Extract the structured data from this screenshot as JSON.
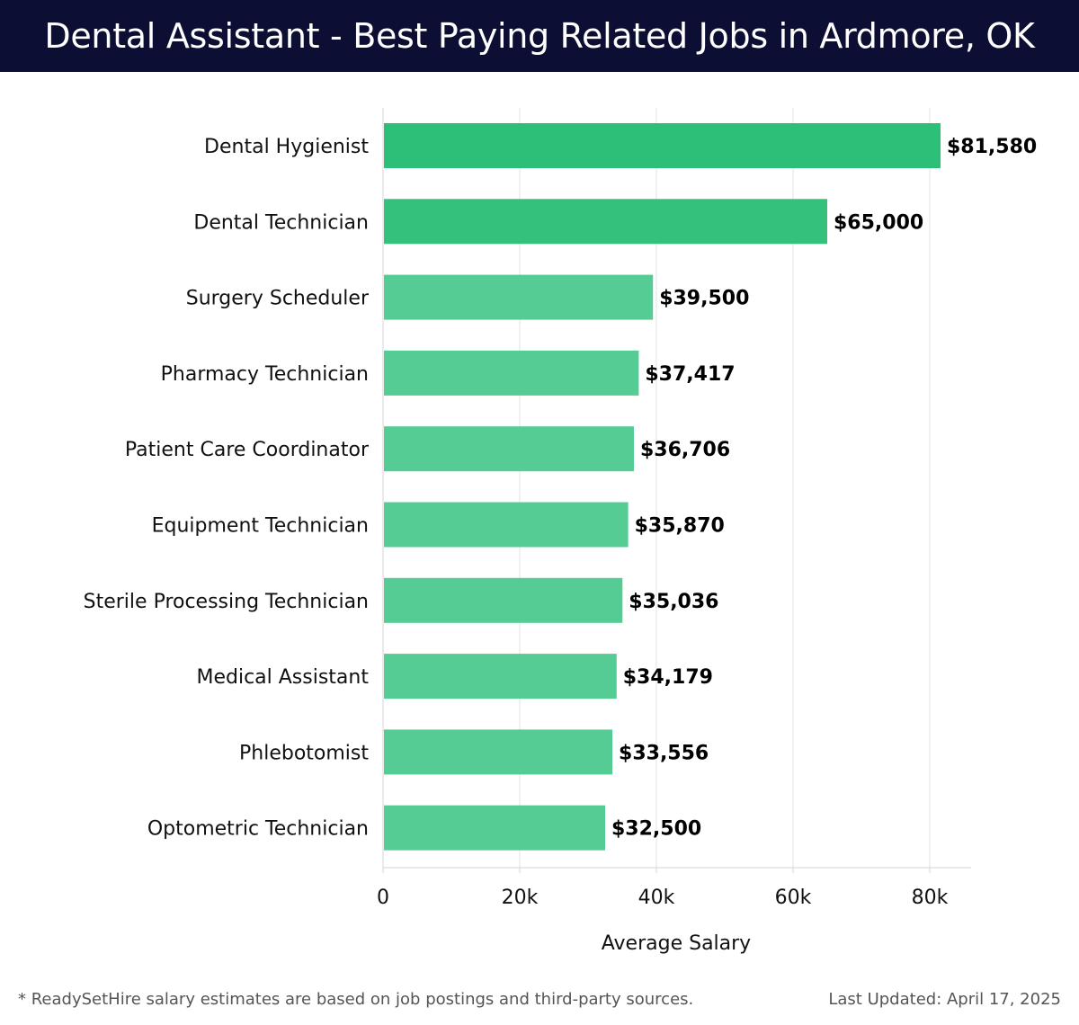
{
  "header": {
    "title": "Dental Assistant - Best Paying Related Jobs in Ardmore, OK"
  },
  "chart_data": {
    "type": "bar",
    "orientation": "horizontal",
    "title": "Dental Assistant - Best Paying Related Jobs in Ardmore, OK",
    "xlabel": "Average Salary",
    "ylabel": "",
    "xlim": [
      0,
      86000
    ],
    "grid": true,
    "categories": [
      "Dental Hygienist",
      "Dental Technician",
      "Surgery Scheduler",
      "Pharmacy Technician",
      "Patient Care Coordinator",
      "Equipment Technician",
      "Sterile Processing Technician",
      "Medical Assistant",
      "Phlebotomist",
      "Optometric Technician"
    ],
    "values": [
      81580,
      65000,
      39500,
      37417,
      36706,
      35870,
      35036,
      34179,
      33556,
      32500
    ],
    "value_labels": [
      "$81,580",
      "$65,000",
      "$39,500",
      "$37,417",
      "$36,706",
      "$35,870",
      "$35,036",
      "$34,179",
      "$33,556",
      "$32,500"
    ],
    "tick_values": [
      0,
      20000,
      40000,
      60000,
      80000
    ],
    "tick_labels": [
      "0",
      "20k",
      "40k",
      "60k",
      "80k"
    ],
    "colors": [
      "#2bbf78",
      "#34c17c",
      "#55cc94",
      "#55cc94",
      "#55cc94",
      "#55cc94",
      "#55cc94",
      "#55cc94",
      "#55cc94",
      "#55cc94"
    ]
  },
  "footer": {
    "note": "* ReadySetHire salary estimates are based on job postings and third-party sources.",
    "updated": "Last Updated: April 17, 2025"
  }
}
